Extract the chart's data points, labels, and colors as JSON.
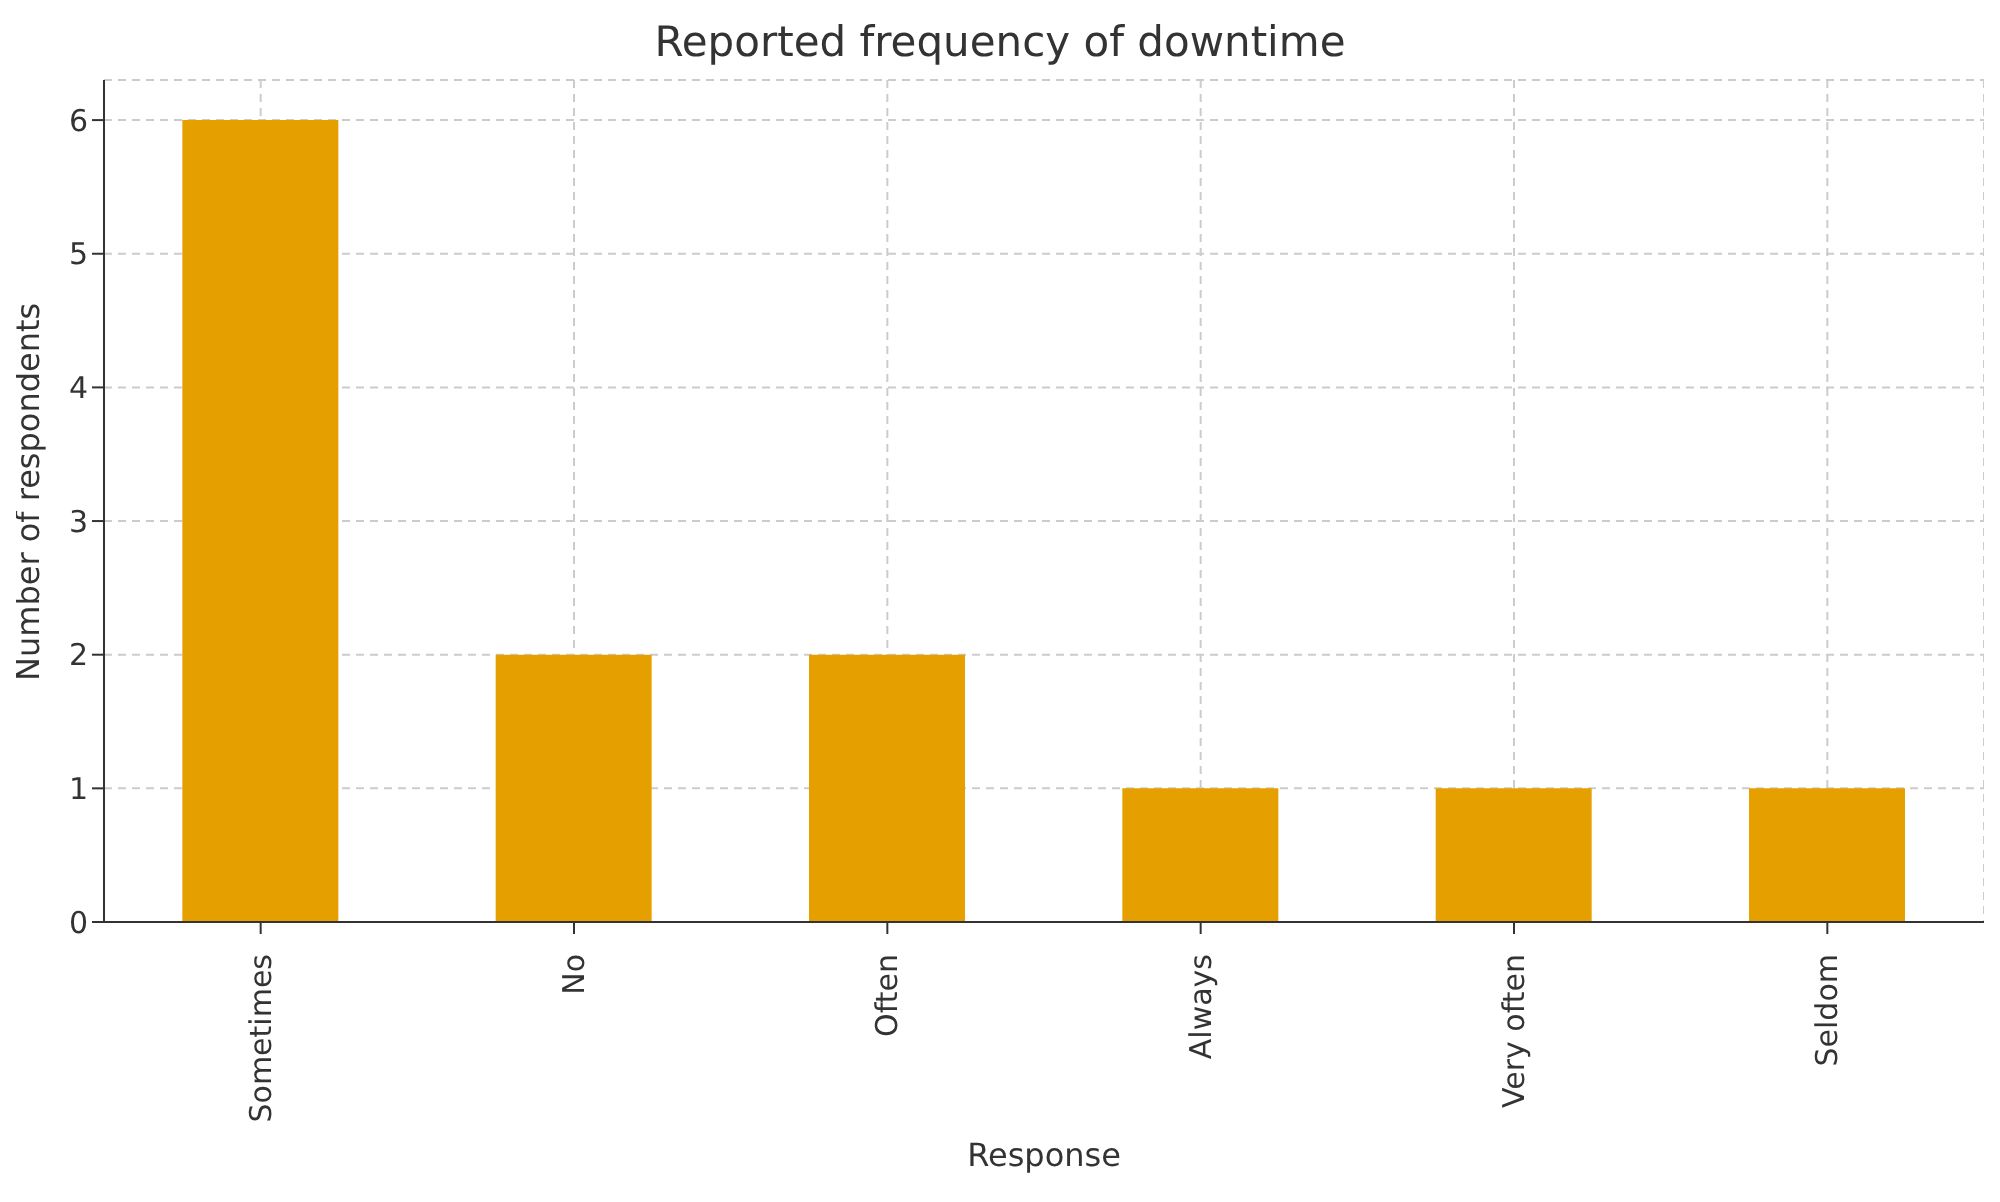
{
  "chart_data": {
    "type": "bar",
    "title": "Reported frequency of downtime",
    "xlabel": "Response",
    "ylabel": "Number of respondents",
    "categories": [
      "Sometimes",
      "No",
      "Often",
      "Always",
      "Very often",
      "Seldom"
    ],
    "values": [
      6,
      2,
      2,
      1,
      1,
      1
    ],
    "color": "#e5a000",
    "ylim": [
      0,
      6.3
    ],
    "yticks": [
      0,
      1,
      2,
      3,
      4,
      5,
      6
    ],
    "grid": true,
    "legend": false
  }
}
